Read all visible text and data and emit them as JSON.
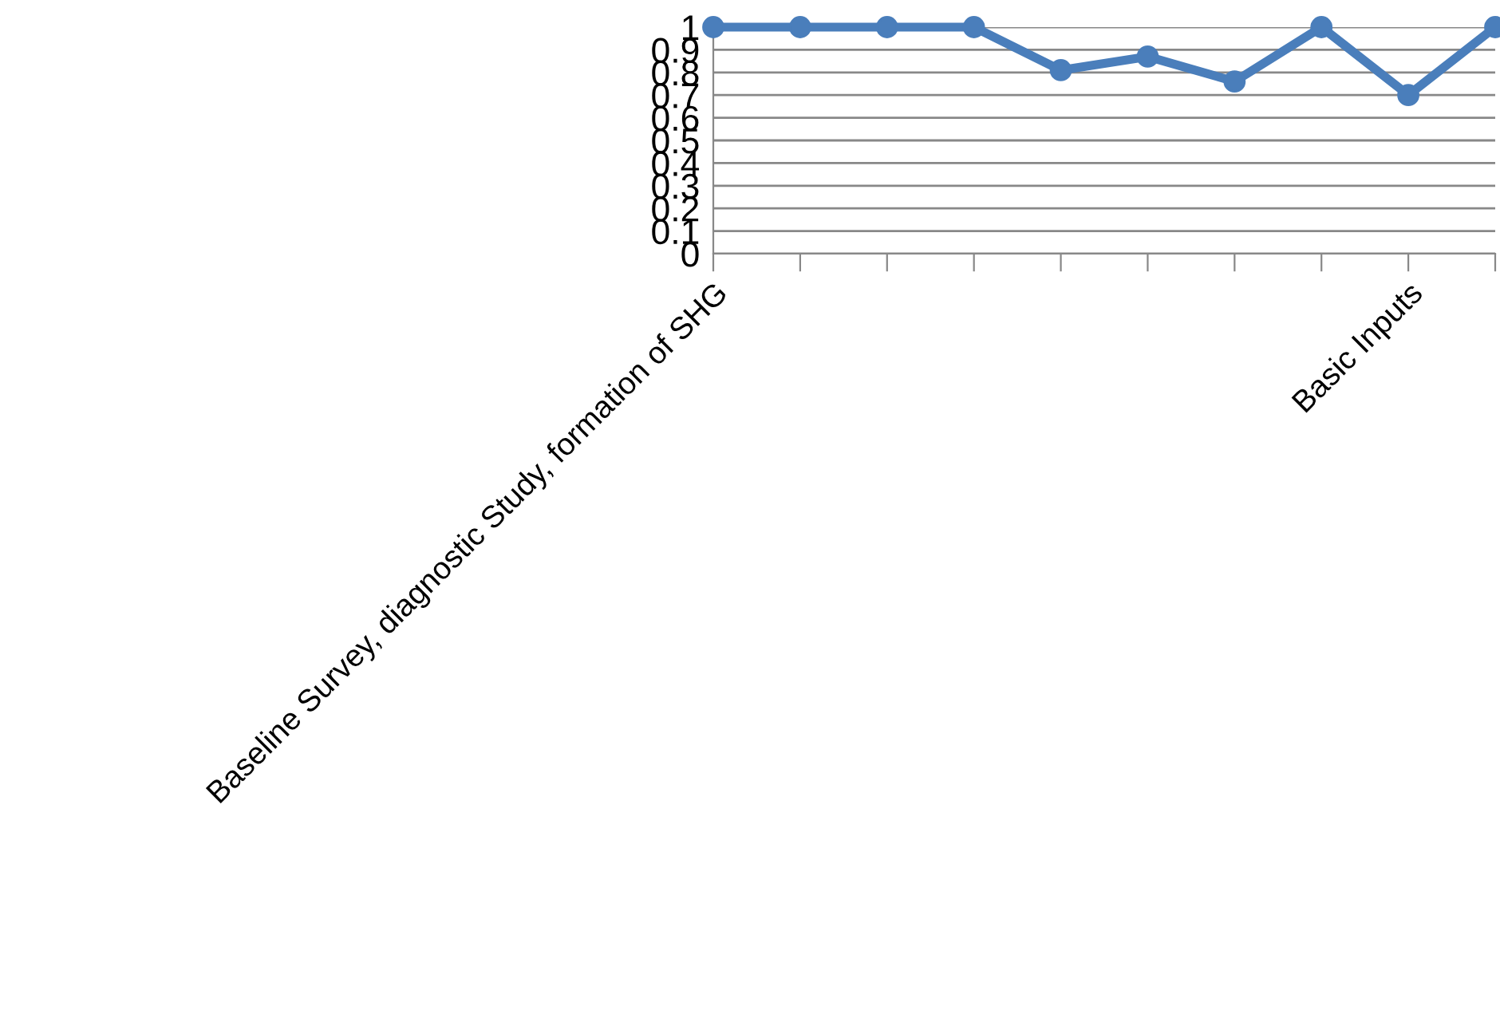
{
  "chart_data": {
    "type": "line",
    "categories": [
      "Baseline Survey, diagnostic Study, formation of SHG",
      null,
      null,
      null,
      null,
      null,
      null,
      null,
      "Basic Inputs",
      null
    ],
    "series": [
      {
        "color": "#4a7ebb",
        "values": [
          1,
          1,
          1,
          1,
          0.81,
          0.87,
          0.76,
          1,
          0.7,
          1
        ]
      }
    ],
    "ylim": [
      0,
      1
    ],
    "yticks": [
      0,
      0.1,
      0.2,
      0.3,
      0.4,
      0.5,
      0.6,
      0.7,
      0.8,
      0.9,
      1
    ],
    "grid": "y",
    "marker": "circle",
    "line_style": "solid",
    "legend": false
  }
}
